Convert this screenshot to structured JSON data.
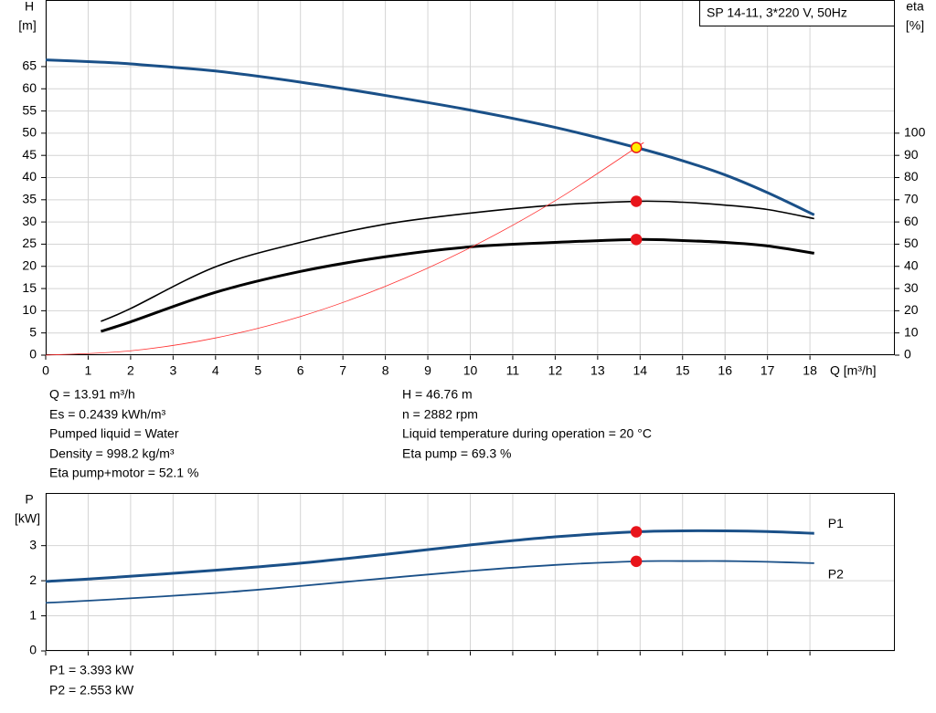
{
  "chart_data": [
    {
      "type": "line",
      "title": "SP 14-11, 3*220 V, 50Hz",
      "ylabel": "H",
      "yunit": "[m]",
      "y2label": "eta",
      "y2unit": "[%]",
      "xlabel": "Q [m³/h]",
      "xlim": [
        0,
        20
      ],
      "xticks": [
        0,
        1,
        2,
        3,
        4,
        5,
        6,
        7,
        8,
        9,
        10,
        11,
        12,
        13,
        14,
        15,
        16,
        17,
        18
      ],
      "ylim": [
        0,
        80
      ],
      "yticks": [
        0,
        5,
        10,
        15,
        20,
        25,
        30,
        35,
        40,
        45,
        50,
        55,
        60,
        65
      ],
      "y2lim": [
        0,
        160
      ],
      "y2ticks": [
        0,
        10,
        20,
        30,
        40,
        50,
        60,
        70,
        80,
        90,
        100
      ],
      "grid": true,
      "operating_x": 13.91,
      "series": [
        {
          "color": "#1a5088",
          "width": 3,
          "marker": "#ffee00",
          "x": [
            0,
            1.3,
            2,
            4,
            6,
            8,
            10,
            12,
            13.91,
            15,
            16,
            17,
            18.1
          ],
          "values": [
            66.5,
            66,
            65.6,
            64,
            61.5,
            58.5,
            55.2,
            51.3,
            46.76,
            43.8,
            40.6,
            36.6,
            31.6
          ]
        },
        {
          "color": "#000000",
          "width": 1.6,
          "axis": "y2",
          "marker": "#e8141b",
          "x": [
            1.3,
            2,
            4,
            6,
            8,
            10,
            12,
            13.91,
            15,
            16,
            17,
            18.1
          ],
          "values": [
            15.2,
            21,
            39.8,
            50.8,
            59,
            64,
            67.6,
            69.3,
            68.9,
            67.6,
            65.6,
            61.5
          ]
        },
        {
          "color": "#000000",
          "width": 3,
          "axis": "y2",
          "marker": "#e8141b",
          "x": [
            1.3,
            2,
            4,
            6,
            8,
            10,
            12,
            13.91,
            15,
            16,
            17,
            18.1
          ],
          "values": [
            10.7,
            15,
            28.3,
            37.7,
            44.3,
            48.8,
            50.8,
            52.1,
            51.6,
            50.8,
            49.2,
            45.9
          ]
        },
        {
          "color": "#ff3030",
          "width": 0.8,
          "x": [
            0,
            2,
            4,
            6,
            8,
            10,
            12,
            13.91,
            14
          ],
          "values": [
            0,
            0.97,
            3.87,
            8.7,
            15.5,
            24.2,
            34.8,
            46.76,
            47.4
          ]
        }
      ]
    },
    {
      "type": "line",
      "ylabel": "P",
      "yunit": "[kW]",
      "xlim": [
        0,
        20
      ],
      "xticks": [
        0,
        1,
        2,
        3,
        4,
        5,
        6,
        7,
        8,
        9,
        10,
        11,
        12,
        13,
        14,
        15,
        16,
        17,
        18
      ],
      "xtick_labels": false,
      "ylim": [
        0,
        4.5
      ],
      "yticks": [
        0,
        1,
        2,
        3
      ],
      "grid": true,
      "operating_x": 13.91,
      "series": [
        {
          "name": "P1",
          "color": "#1a5088",
          "width": 3,
          "marker": "#e8141b",
          "x": [
            0,
            1.3,
            4,
            6,
            8,
            10,
            12,
            13.91,
            15,
            16,
            17,
            18.1
          ],
          "values": [
            1.98,
            2.07,
            2.3,
            2.5,
            2.75,
            3.02,
            3.25,
            3.393,
            3.42,
            3.42,
            3.4,
            3.35
          ]
        },
        {
          "name": "P2",
          "color": "#1a5088",
          "width": 1.8,
          "marker": "#e8141b",
          "x": [
            0,
            1.3,
            4,
            6,
            8,
            10,
            12,
            13.91,
            15,
            16,
            17,
            18.1
          ],
          "values": [
            1.37,
            1.45,
            1.65,
            1.85,
            2.07,
            2.28,
            2.45,
            2.553,
            2.56,
            2.56,
            2.54,
            2.5
          ]
        }
      ]
    }
  ],
  "info": {
    "left": [
      "Q = 13.91 m³/h",
      "Es = 0.2439 kWh/m³",
      "Pumped liquid = Water",
      "Density = 998.2 kg/m³",
      "Eta pump+motor = 52.1 %"
    ],
    "right": [
      "H = 46.76 m",
      "n = 2882 rpm",
      "Liquid temperature during operation = 20 °C",
      "Eta pump = 69.3 %"
    ]
  },
  "power_info": [
    "P1 = 3.393 kW",
    "P2 = 2.553 kW"
  ]
}
